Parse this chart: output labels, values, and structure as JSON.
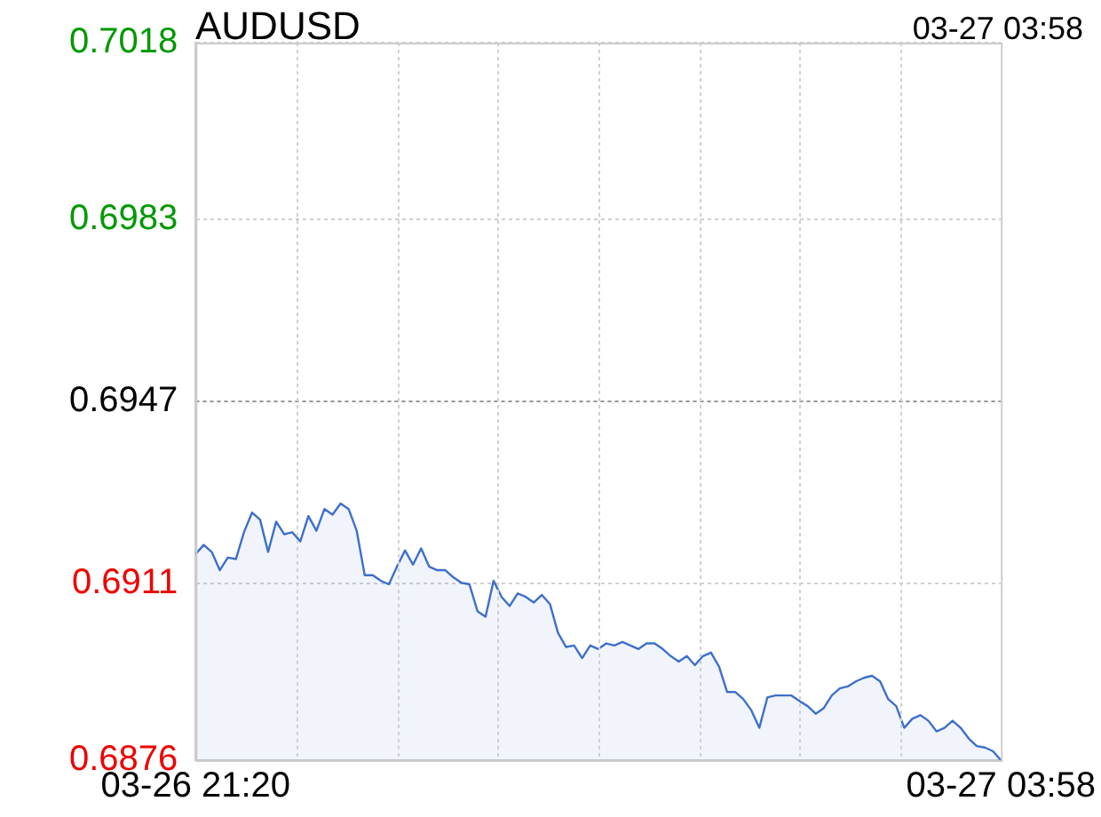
{
  "chart_data": {
    "type": "area",
    "title": "AUDUSD",
    "annotations": [
      "03-27 03:58"
    ],
    "categories": [
      "03-26 21:20",
      null,
      null,
      null,
      null,
      null,
      null,
      null,
      null,
      null,
      null,
      null,
      null,
      null,
      null,
      null,
      null,
      null,
      null,
      null,
      null,
      null,
      null,
      null,
      null,
      null,
      null,
      null,
      null,
      null,
      null,
      null,
      null,
      null,
      null,
      null,
      null,
      null,
      null,
      null,
      null,
      null,
      null,
      null,
      null,
      null,
      null,
      null,
      null,
      null,
      null,
      null,
      null,
      null,
      null,
      null,
      null,
      null,
      null,
      null,
      null,
      null,
      null,
      null,
      null,
      null,
      null,
      null,
      null,
      null,
      null,
      null,
      null,
      null,
      null,
      null,
      null,
      null,
      null,
      null,
      null,
      null,
      null,
      null,
      null,
      null,
      null,
      null,
      null,
      null,
      null,
      null,
      null,
      null,
      null,
      null,
      null,
      null,
      null,
      null,
      "03-27 03:58"
    ],
    "ylim": [
      0.6876,
      0.7018
    ],
    "yticks": [
      0.6876,
      0.6911,
      0.6947,
      0.6983,
      0.7018
    ],
    "ref_lines": [
      {
        "axis": "y",
        "value": 0.6947,
        "color": "#999999",
        "line_style": "dotted"
      }
    ],
    "grid": true,
    "legend": false,
    "marker": "none",
    "line_style": "solid",
    "series": [
      {
        "color": "#3d6fcc",
        "values": [
          0.69168,
          0.69186,
          0.69172,
          0.69136,
          0.69161,
          0.69158,
          0.69211,
          0.6925,
          0.69236,
          0.69172,
          0.69232,
          0.69207,
          0.69211,
          0.69193,
          0.69243,
          0.69214,
          0.69257,
          0.69246,
          0.69268,
          0.69257,
          0.69214,
          0.69126,
          0.69126,
          0.69115,
          0.69108,
          0.69143,
          0.69175,
          0.69147,
          0.69179,
          0.69143,
          0.69136,
          0.69136,
          0.69122,
          0.69111,
          0.69108,
          0.69055,
          0.69044,
          0.69115,
          0.69083,
          0.69065,
          0.6909,
          0.69083,
          0.69072,
          0.69087,
          0.69069,
          0.69012,
          0.68984,
          0.68987,
          0.68962,
          0.68987,
          0.6898,
          0.68991,
          0.68987,
          0.68994,
          0.68987,
          0.6898,
          0.68991,
          0.68991,
          0.6898,
          0.68966,
          0.68955,
          0.68966,
          0.68948,
          0.68966,
          0.68973,
          0.68945,
          0.68895,
          0.68895,
          0.68881,
          0.68859,
          0.68824,
          0.68884,
          0.68888,
          0.68888,
          0.68888,
          0.68877,
          0.68867,
          0.68852,
          0.68863,
          0.68888,
          0.68902,
          0.68906,
          0.68916,
          0.68923,
          0.68927,
          0.68916,
          0.68881,
          0.68867,
          0.68824,
          0.68842,
          0.68849,
          0.68838,
          0.68817,
          0.68824,
          0.68838,
          0.68824,
          0.68803,
          0.68788,
          0.68785,
          0.68778,
          0.6876
        ]
      }
    ]
  }
}
